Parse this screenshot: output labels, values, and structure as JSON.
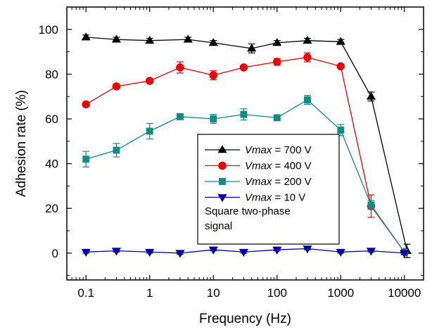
{
  "chart_data": {
    "type": "line",
    "xlabel": "Frequency (Hz)",
    "ylabel": "Adhesion rate (%)",
    "x_scale": "log",
    "xlim": [
      0.05,
      20000
    ],
    "ylim": [
      -12,
      110
    ],
    "x_ticks": [
      0.1,
      1,
      10,
      100,
      1000,
      10000
    ],
    "x_tick_labels": [
      "0.1",
      "1",
      "10",
      "100",
      "1000",
      "10000"
    ],
    "y_ticks": [
      0,
      20,
      40,
      60,
      80,
      100
    ],
    "y_tick_labels": [
      "0",
      "20",
      "40",
      "60",
      "80",
      "100"
    ],
    "grid": false,
    "legend_position": "center-right",
    "series": [
      {
        "name": "Vmax",
        "value_label": " = 700 V",
        "color": "#000000",
        "marker": "triangle-up",
        "x": [
          0.1,
          0.3,
          1,
          4,
          10,
          40,
          100,
          300,
          1000,
          3000,
          11000
        ],
        "y": [
          96.5,
          95.5,
          95,
          95.5,
          94,
          91.5,
          94,
          95,
          94.5,
          70,
          1
        ],
        "err": [
          1,
          1,
          1,
          1,
          1,
          2,
          1,
          1,
          1,
          2,
          3
        ]
      },
      {
        "name": "Vmax",
        "value_label": " = 400 V",
        "color": "#ee0000",
        "marker": "circle",
        "x": [
          0.1,
          0.3,
          1,
          3,
          10,
          30,
          100,
          300,
          1000,
          3000,
          10000
        ],
        "y": [
          66.5,
          74.5,
          77,
          83,
          79.5,
          83,
          85.5,
          87.5,
          83.5,
          21,
          0.5
        ],
        "err": [
          0.5,
          1,
          0.5,
          2.5,
          2,
          0.5,
          1.5,
          2,
          0.5,
          5,
          0.5
        ]
      },
      {
        "name": "Vmax",
        "value_label": " = 200 V",
        "color": "#138a86",
        "marker": "square",
        "x": [
          0.1,
          0.3,
          1,
          3,
          10,
          30,
          100,
          300,
          1000,
          3000,
          10000
        ],
        "y": [
          42,
          46,
          54.5,
          61,
          60,
          62,
          60.5,
          68.5,
          55,
          21.5,
          0.5
        ],
        "err": [
          3.5,
          3,
          3.5,
          0.5,
          2,
          2.5,
          0.5,
          2,
          2.5,
          2,
          0.5
        ]
      },
      {
        "name": "Vmax",
        "value_label": " = 10 V",
        "color": "#0000a0",
        "marker": "triangle-down",
        "x": [
          0.1,
          0.3,
          1,
          3,
          10,
          30,
          100,
          300,
          1000,
          3000,
          10000
        ],
        "y": [
          0.5,
          1,
          0.5,
          0,
          1.5,
          0.5,
          1.5,
          2,
          0.5,
          1,
          0
        ],
        "err": [
          0.5,
          0.5,
          0.5,
          0.5,
          0.5,
          0.5,
          0.5,
          0.5,
          0.5,
          0.5,
          0.5
        ]
      }
    ],
    "legend_note": [
      "Square two-phase",
      "signal"
    ]
  }
}
